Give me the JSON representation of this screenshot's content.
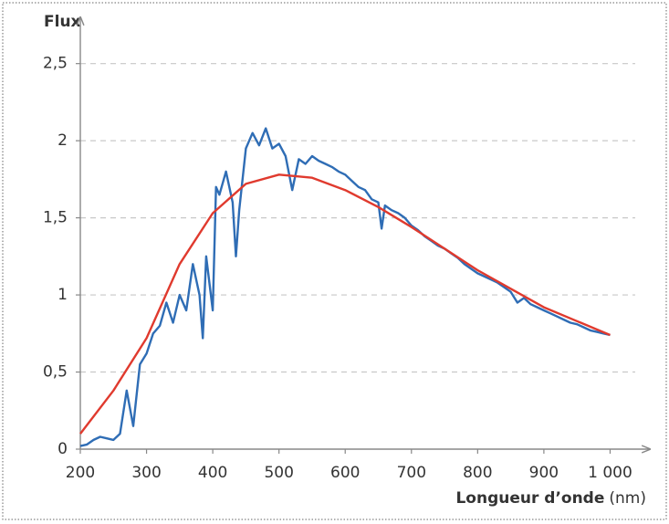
{
  "chart_data": {
    "type": "line",
    "ylabel": "Flux",
    "xlabel": "Longueur d’onde",
    "xunit": "(nm)",
    "xlim": [
      200,
      1060
    ],
    "ylim": [
      0,
      2.8
    ],
    "xticks": [
      200,
      300,
      400,
      500,
      600,
      700,
      800,
      900,
      {
        "value": 1000,
        "label": "1 000"
      }
    ],
    "yticks": [
      0,
      {
        "value": 0.5,
        "label": "0,5"
      },
      1,
      {
        "value": 1.5,
        "label": "1,5"
      },
      2,
      {
        "value": 2.5,
        "label": "2,5"
      }
    ],
    "grid": true,
    "series": [
      {
        "color": "#2f6db5",
        "x": [
          200,
          210,
          220,
          230,
          240,
          250,
          260,
          270,
          280,
          290,
          300,
          310,
          320,
          330,
          340,
          350,
          360,
          370,
          380,
          385,
          390,
          400,
          405,
          410,
          420,
          430,
          435,
          440,
          450,
          460,
          470,
          480,
          490,
          500,
          510,
          520,
          530,
          540,
          550,
          560,
          570,
          580,
          590,
          600,
          610,
          620,
          630,
          640,
          650,
          655,
          660,
          670,
          680,
          690,
          700,
          710,
          720,
          730,
          740,
          750,
          760,
          770,
          780,
          790,
          800,
          810,
          820,
          830,
          840,
          850,
          860,
          870,
          880,
          890,
          900,
          910,
          920,
          930,
          940,
          950,
          960,
          970,
          980,
          990,
          1000
        ],
        "values": [
          0.02,
          0.03,
          0.06,
          0.08,
          0.07,
          0.06,
          0.1,
          0.38,
          0.15,
          0.55,
          0.62,
          0.75,
          0.8,
          0.95,
          0.82,
          1.0,
          0.9,
          1.2,
          1.0,
          0.72,
          1.25,
          0.9,
          1.7,
          1.65,
          1.8,
          1.6,
          1.25,
          1.55,
          1.95,
          2.05,
          1.97,
          2.08,
          1.95,
          1.98,
          1.9,
          1.68,
          1.88,
          1.85,
          1.9,
          1.87,
          1.85,
          1.83,
          1.8,
          1.78,
          1.74,
          1.7,
          1.68,
          1.62,
          1.6,
          1.43,
          1.58,
          1.55,
          1.53,
          1.5,
          1.45,
          1.42,
          1.38,
          1.35,
          1.32,
          1.3,
          1.27,
          1.24,
          1.2,
          1.17,
          1.14,
          1.12,
          1.1,
          1.08,
          1.05,
          1.02,
          0.95,
          0.98,
          0.94,
          0.92,
          0.9,
          0.88,
          0.86,
          0.84,
          0.82,
          0.81,
          0.79,
          0.77,
          0.76,
          0.75,
          0.74
        ]
      },
      {
        "color": "#e03a2e",
        "x": [
          200,
          250,
          300,
          350,
          400,
          450,
          500,
          550,
          600,
          650,
          700,
          750,
          800,
          850,
          900,
          950,
          1000
        ],
        "values": [
          0.1,
          0.38,
          0.72,
          1.2,
          1.53,
          1.72,
          1.78,
          1.76,
          1.68,
          1.57,
          1.44,
          1.3,
          1.16,
          1.04,
          0.92,
          0.83,
          0.74
        ]
      }
    ]
  }
}
